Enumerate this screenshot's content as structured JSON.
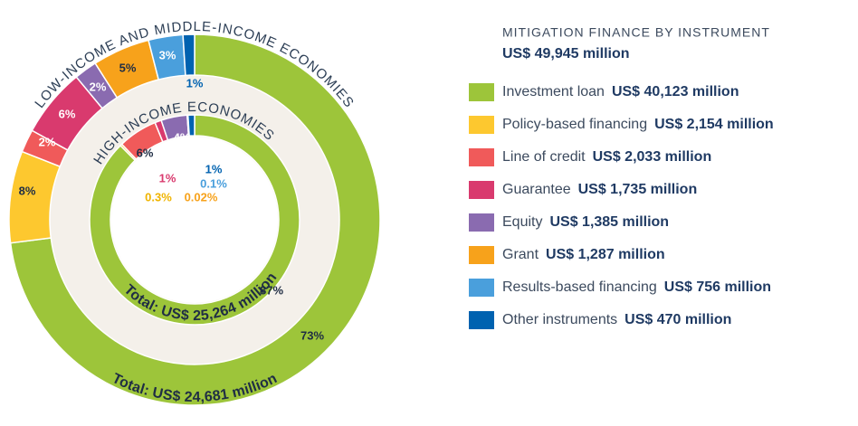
{
  "chart_data": {
    "type": "donut",
    "title": "MITIGATION FINANCE BY INSTRUMENT",
    "subtitle": "US$ 49,945 million",
    "categories": [
      "Investment loan",
      "Policy-based financing",
      "Line of credit",
      "Guarantee",
      "Equity",
      "Grant",
      "Results-based financing",
      "Other instruments"
    ],
    "colors": [
      "#9dc53a",
      "#fdc82f",
      "#f05a5a",
      "#d93a6e",
      "#8a6bb0",
      "#f7a21b",
      "#4a9fdc",
      "#0062b0"
    ],
    "legend_values": [
      "US$ 40,123 million",
      "US$ 2,154 million",
      "US$ 2,033 million",
      "US$ 1,735 million",
      "US$ 1,385 million",
      "US$ 1,287 million",
      "US$ 756 million",
      "US$ 470 million"
    ],
    "rings": [
      {
        "name": "LOW-INCOME AND MIDDLE-INCOME ECONOMIES",
        "total": "Total: US$ 24,681 million",
        "values": [
          73,
          8,
          2,
          6,
          2,
          5,
          3,
          1
        ],
        "value_labels": [
          "73%",
          "8%",
          "2%",
          "6%",
          "2%",
          "5%",
          "3%",
          "1%"
        ]
      },
      {
        "name": "HIGH-INCOME ECONOMIES",
        "total": "Total: US$ 25,264 million",
        "values": [
          87,
          0.3,
          6,
          1,
          4,
          0.02,
          0.1,
          1
        ],
        "value_labels": [
          "87%",
          "0.3%",
          "6%",
          "1%",
          "4%",
          "0.02%",
          "0.1%",
          "1%"
        ]
      }
    ]
  }
}
